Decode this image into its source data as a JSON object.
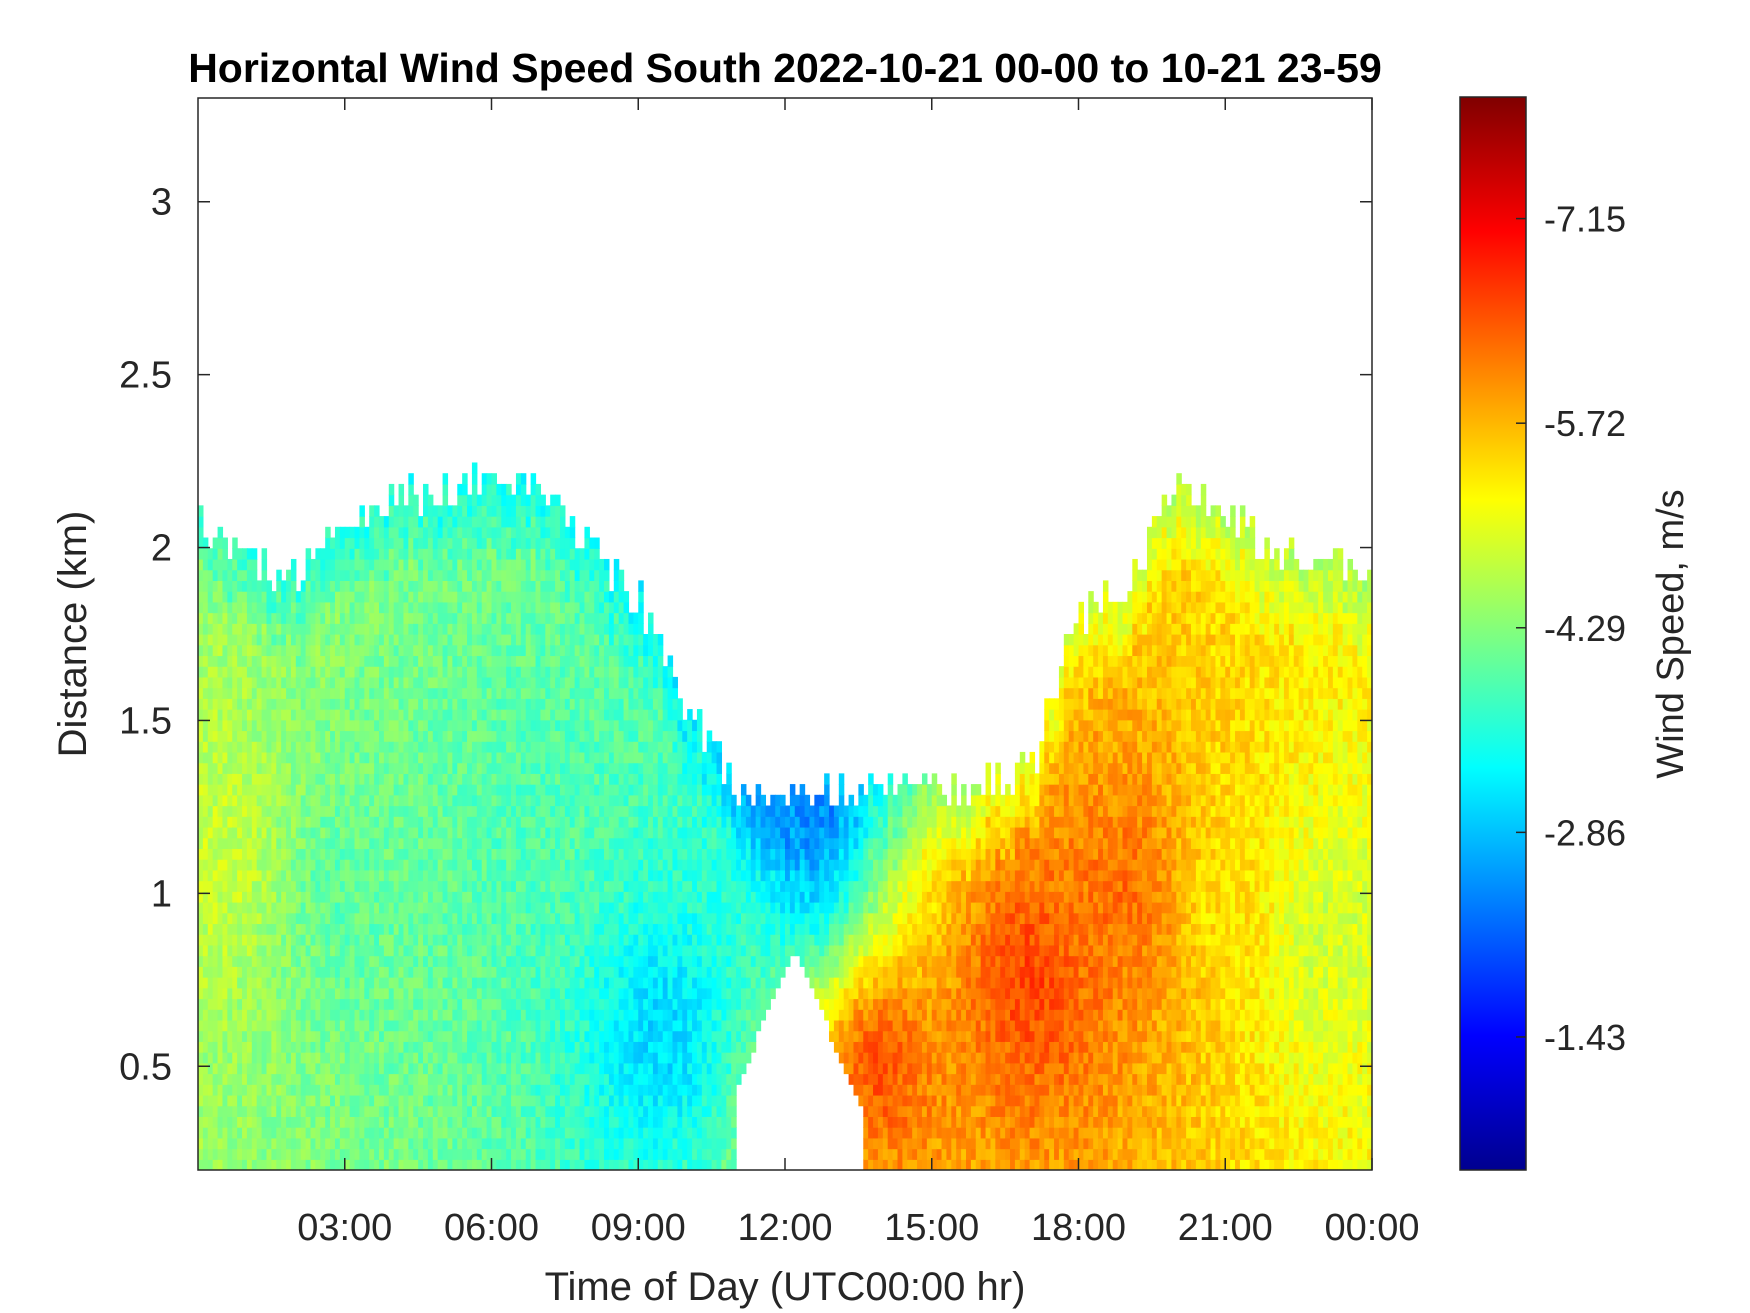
{
  "chart_data": {
    "type": "heatmap",
    "title": "Horizontal Wind Speed South 2022-10-21 00-00 to 10-21 23-59",
    "xlabel": "Time of Day (UTC00:00 hr)",
    "ylabel": "Distance (km)",
    "colorbar_label": "Wind Speed, m/s",
    "colormap": "jet",
    "x_unit": "hours",
    "xlim": [
      0,
      24
    ],
    "ylim": [
      0.2,
      3.3
    ],
    "clim": [
      -8.0,
      -0.5
    ],
    "x_ticks": [
      3,
      6,
      9,
      12,
      15,
      18,
      21,
      24
    ],
    "x_tick_labels": [
      "03:00",
      "06:00",
      "09:00",
      "12:00",
      "15:00",
      "18:00",
      "21:00",
      "00:00"
    ],
    "y_ticks": [
      0.5,
      1,
      1.5,
      2,
      2.5,
      3
    ],
    "y_tick_labels": [
      "0.5",
      "1",
      "1.5",
      "2",
      "2.5",
      "3"
    ],
    "colorbar_ticks": [
      -7.15,
      -5.72,
      -4.29,
      -2.86,
      -1.43
    ],
    "colorbar_tick_labels": [
      "-7.15",
      "-5.72",
      "-4.29",
      "-2.86",
      "-1.43"
    ],
    "top_height_km": [
      [
        0.0,
        2.1
      ],
      [
        1.0,
        1.95
      ],
      [
        2.0,
        1.92
      ],
      [
        3.0,
        2.05
      ],
      [
        4.0,
        2.15
      ],
      [
        5.0,
        2.17
      ],
      [
        6.0,
        2.18
      ],
      [
        7.0,
        2.2
      ],
      [
        8.0,
        2.0
      ],
      [
        9.0,
        1.85
      ],
      [
        10.0,
        1.55
      ],
      [
        11.0,
        1.3
      ],
      [
        12.0,
        1.3
      ],
      [
        13.0,
        1.3
      ],
      [
        13.6,
        1.3
      ],
      [
        14.0,
        1.35
      ],
      [
        15.0,
        1.3
      ],
      [
        16.0,
        1.3
      ],
      [
        17.0,
        1.35
      ],
      [
        18.0,
        1.8
      ],
      [
        19.0,
        1.9
      ],
      [
        20.0,
        2.2
      ],
      [
        21.0,
        2.1
      ],
      [
        22.0,
        2.0
      ],
      [
        23.0,
        1.95
      ],
      [
        24.0,
        1.95
      ]
    ],
    "wind_speed_samples_m_s": [
      {
        "time_h": 0.5,
        "distance_km": 1.1,
        "value": -4.8
      },
      {
        "time_h": 3.0,
        "distance_km": 1.0,
        "value": -4.0
      },
      {
        "time_h": 7.0,
        "distance_km": 1.2,
        "value": -3.9
      },
      {
        "time_h": 9.5,
        "distance_km": 0.6,
        "value": -3.0
      },
      {
        "time_h": 12.5,
        "distance_km": 1.1,
        "value": -2.8
      },
      {
        "time_h": 13.9,
        "distance_km": 0.5,
        "value": -6.5
      },
      {
        "time_h": 17.0,
        "distance_km": 0.75,
        "value": -6.6
      },
      {
        "time_h": 19.0,
        "distance_km": 1.0,
        "value": -6.3
      },
      {
        "time_h": 21.0,
        "distance_km": 1.0,
        "value": -5.4
      },
      {
        "time_h": 23.0,
        "distance_km": 0.9,
        "value": -4.8
      }
    ]
  }
}
